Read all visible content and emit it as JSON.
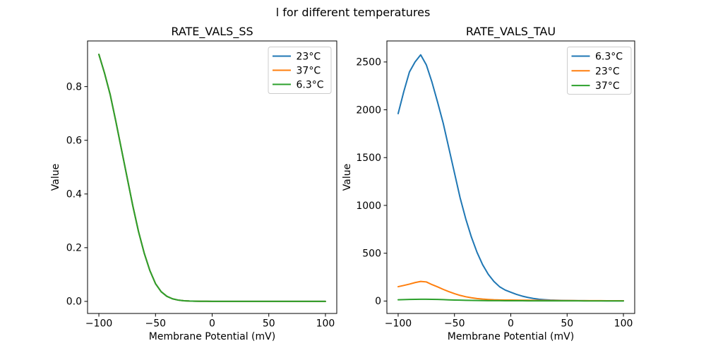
{
  "figure": {
    "suptitle": "l for different temperatures",
    "background": "#ffffff",
    "text_color": "#000000"
  },
  "chart_data": [
    {
      "type": "line",
      "title": "RATE_VALS_SS",
      "xlabel": "Membrane Potential (mV)",
      "ylabel": "Value",
      "grid": false,
      "xlim": [
        -110,
        110
      ],
      "ylim": [
        -0.045,
        0.97
      ],
      "xticks": {
        "values": [
          -100,
          -50,
          0,
          50,
          100
        ],
        "labels": [
          "−100",
          "−50",
          "0",
          "50",
          "100"
        ]
      },
      "yticks": {
        "values": [
          0.0,
          0.2,
          0.4,
          0.6,
          0.8
        ],
        "labels": [
          "0.0",
          "0.2",
          "0.4",
          "0.6",
          "0.8"
        ]
      },
      "legend": {
        "position": "upper right",
        "entries": [
          {
            "label": "23°C",
            "color": "#1f77b4"
          },
          {
            "label": "37°C",
            "color": "#ff7f0e"
          },
          {
            "label": "6.3°C",
            "color": "#2ca02c"
          }
        ]
      },
      "note": "All three temperature curves coincide exactly; only the last-drawn (green 6.3°C) curve is visible.",
      "x": [
        -100,
        -95,
        -90,
        -85,
        -80,
        -75,
        -70,
        -65,
        -60,
        -55,
        -50,
        -45,
        -40,
        -35,
        -30,
        -25,
        -20,
        -15,
        -10,
        -5,
        0,
        5,
        10,
        15,
        20,
        25,
        30,
        35,
        40,
        45,
        50,
        55,
        60,
        65,
        70,
        75,
        80,
        85,
        90,
        95,
        100
      ],
      "series": [
        {
          "name": "23°C",
          "color": "#1f77b4",
          "values": [
            0.92,
            0.85,
            0.77,
            0.67,
            0.565,
            0.46,
            0.355,
            0.26,
            0.18,
            0.115,
            0.066,
            0.036,
            0.019,
            0.0095,
            0.0048,
            0.0024,
            0.0012,
            0.0006,
            0.0003,
            0.0002,
            0.0001,
            0.0001,
            0,
            0,
            0,
            0,
            0,
            0,
            0,
            0,
            0,
            0,
            0,
            0,
            0,
            0,
            0,
            0,
            0,
            0,
            0
          ]
        },
        {
          "name": "37°C",
          "color": "#ff7f0e",
          "values": [
            0.92,
            0.85,
            0.77,
            0.67,
            0.565,
            0.46,
            0.355,
            0.26,
            0.18,
            0.115,
            0.066,
            0.036,
            0.019,
            0.0095,
            0.0048,
            0.0024,
            0.0012,
            0.0006,
            0.0003,
            0.0002,
            0.0001,
            0.0001,
            0,
            0,
            0,
            0,
            0,
            0,
            0,
            0,
            0,
            0,
            0,
            0,
            0,
            0,
            0,
            0,
            0,
            0,
            0
          ]
        },
        {
          "name": "6.3°C",
          "color": "#2ca02c",
          "values": [
            0.92,
            0.85,
            0.77,
            0.67,
            0.565,
            0.46,
            0.355,
            0.26,
            0.18,
            0.115,
            0.066,
            0.036,
            0.019,
            0.0095,
            0.0048,
            0.0024,
            0.0012,
            0.0006,
            0.0003,
            0.0002,
            0.0001,
            0.0001,
            0,
            0,
            0,
            0,
            0,
            0,
            0,
            0,
            0,
            0,
            0,
            0,
            0,
            0,
            0,
            0,
            0,
            0,
            0
          ]
        }
      ]
    },
    {
      "type": "line",
      "title": "RATE_VALS_TAU",
      "xlabel": "Membrane Potential (mV)",
      "ylabel": "Value",
      "grid": false,
      "xlim": [
        -110,
        110
      ],
      "ylim": [
        -130,
        2720
      ],
      "xticks": {
        "values": [
          -100,
          -50,
          0,
          50,
          100
        ],
        "labels": [
          "−100",
          "−50",
          "0",
          "50",
          "100"
        ]
      },
      "yticks": {
        "values": [
          0,
          500,
          1000,
          1500,
          2000,
          2500
        ],
        "labels": [
          "0",
          "500",
          "1000",
          "1500",
          "2000",
          "2500"
        ]
      },
      "legend": {
        "position": "upper right",
        "entries": [
          {
            "label": "6.3°C",
            "color": "#1f77b4"
          },
          {
            "label": "23°C",
            "color": "#ff7f0e"
          },
          {
            "label": "37°C",
            "color": "#2ca02c"
          }
        ]
      },
      "note": "Blue (6.3°C) peaks near 2575 at -80 mV; orange (23°C) peaks near 205; green (37°C) stays below ~20.",
      "x": [
        -100,
        -95,
        -90,
        -85,
        -80,
        -75,
        -70,
        -65,
        -60,
        -55,
        -50,
        -45,
        -40,
        -35,
        -30,
        -25,
        -20,
        -15,
        -10,
        -5,
        0,
        5,
        10,
        15,
        20,
        25,
        30,
        35,
        40,
        45,
        50,
        55,
        60,
        65,
        70,
        75,
        80,
        85,
        90,
        95,
        100
      ],
      "series": [
        {
          "name": "6.3°C",
          "color": "#1f77b4",
          "values": [
            1960,
            2190,
            2395,
            2500,
            2575,
            2470,
            2290,
            2080,
            1860,
            1600,
            1340,
            1080,
            860,
            670,
            510,
            380,
            280,
            205,
            150,
            115,
            92,
            70,
            52,
            38,
            27,
            19,
            14,
            10,
            8,
            6.5,
            5.5,
            4.5,
            4,
            3.5,
            3,
            2.8,
            2.6,
            2.4,
            2.2,
            2.1,
            2
          ]
        },
        {
          "name": "23°C",
          "color": "#ff7f0e",
          "values": [
            150,
            163,
            177,
            193,
            205,
            200,
            172,
            148,
            122,
            98,
            77,
            59,
            45,
            34,
            26,
            20,
            16,
            13,
            11.5,
            10.5,
            10,
            9,
            8.5,
            8,
            7.5,
            7,
            6.5,
            6,
            5.5,
            5,
            4.8,
            4.5,
            4.2,
            4,
            3.8,
            3.6,
            3.4,
            3.2,
            3,
            2.9,
            2.8
          ]
        },
        {
          "name": "37°C",
          "color": "#2ca02c",
          "values": [
            13,
            15,
            16.5,
            18,
            19,
            19,
            18,
            16.5,
            14.5,
            12.5,
            10.5,
            9,
            7.5,
            6.5,
            5.5,
            4.8,
            4.2,
            3.8,
            3.4,
            3.1,
            2.9,
            2.7,
            2.5,
            2.4,
            2.2,
            2.1,
            2,
            1.9,
            1.8,
            1.7,
            1.7,
            1.6,
            1.6,
            1.5,
            1.5,
            1.4,
            1.4,
            1.4,
            1.3,
            1.3,
            1.3
          ]
        }
      ]
    }
  ]
}
